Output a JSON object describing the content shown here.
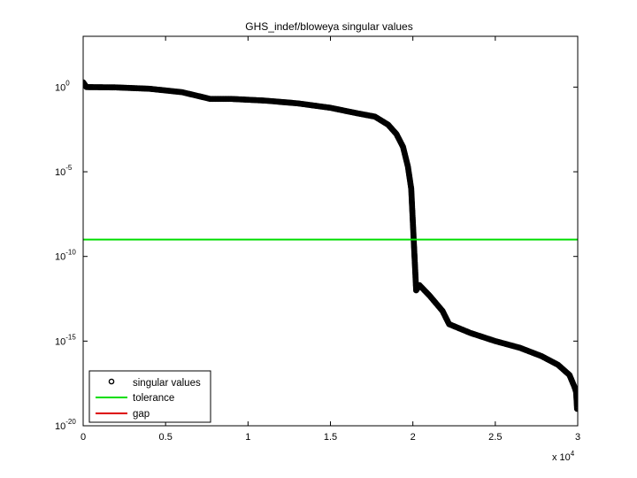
{
  "chart_data": {
    "type": "scatter",
    "title": "GHS_indef/bloweya singular values",
    "xlabel": "",
    "ylabel": "",
    "x_scale_note": "x 10",
    "x_scale_exponent": "4",
    "xlim": [
      0,
      30000
    ],
    "ylim": [
      1e-20,
      1000.0
    ],
    "yscale": "log",
    "grid": false,
    "legend_position": "bottom-left",
    "x_ticks": [
      {
        "value": 0,
        "label": "0"
      },
      {
        "value": 5000,
        "label": "0.5"
      },
      {
        "value": 10000,
        "label": "1"
      },
      {
        "value": 15000,
        "label": "1.5"
      },
      {
        "value": 20000,
        "label": "2"
      },
      {
        "value": 25000,
        "label": "2.5"
      },
      {
        "value": 30000,
        "label": "3"
      }
    ],
    "y_ticks": [
      {
        "value": 1,
        "base": "10",
        "exp": "0"
      },
      {
        "value": 1e-05,
        "base": "10",
        "exp": "-5"
      },
      {
        "value": 1e-10,
        "base": "10",
        "exp": "-10"
      },
      {
        "value": 1e-15,
        "base": "10",
        "exp": "-15"
      },
      {
        "value": 1e-20,
        "base": "10",
        "exp": "-20"
      }
    ],
    "series": [
      {
        "name": "singular values",
        "color": "#000000",
        "marker": "circle",
        "points": [
          [
            0,
            1.9
          ],
          [
            200,
            1.0
          ],
          [
            2000,
            0.96
          ],
          [
            4000,
            0.8
          ],
          [
            6000,
            0.5
          ],
          [
            7300,
            0.25
          ],
          [
            7700,
            0.2
          ],
          [
            9000,
            0.2
          ],
          [
            11000,
            0.16
          ],
          [
            13000,
            0.11
          ],
          [
            15000,
            0.06
          ],
          [
            16500,
            0.03
          ],
          [
            17700,
            0.018
          ],
          [
            18500,
            0.006
          ],
          [
            19000,
            0.0017
          ],
          [
            19400,
            0.0003
          ],
          [
            19700,
            2e-05
          ],
          [
            19900,
            1e-06
          ],
          [
            20000,
            1e-08
          ],
          [
            20100,
            1e-10
          ],
          [
            20200,
            1e-12
          ],
          [
            20400,
            2e-12
          ],
          [
            21000,
            5e-13
          ],
          [
            21800,
            6e-14
          ],
          [
            22200,
            1e-14
          ],
          [
            23500,
            3e-15
          ],
          [
            25000,
            1e-15
          ],
          [
            26500,
            4e-16
          ],
          [
            27800,
            1.3e-16
          ],
          [
            28800,
            4e-17
          ],
          [
            29500,
            1e-17
          ],
          [
            29800,
            2e-18
          ],
          [
            29900,
            1e-18
          ],
          [
            29920,
            5e-19
          ],
          [
            29940,
            2.5e-19
          ],
          [
            29960,
            1e-19
          ]
        ]
      },
      {
        "name": "tolerance",
        "color": "#00dd00",
        "type": "hline",
        "value": 1e-09
      },
      {
        "name": "gap",
        "color": "#dd0000",
        "type": "hline"
      }
    ]
  }
}
